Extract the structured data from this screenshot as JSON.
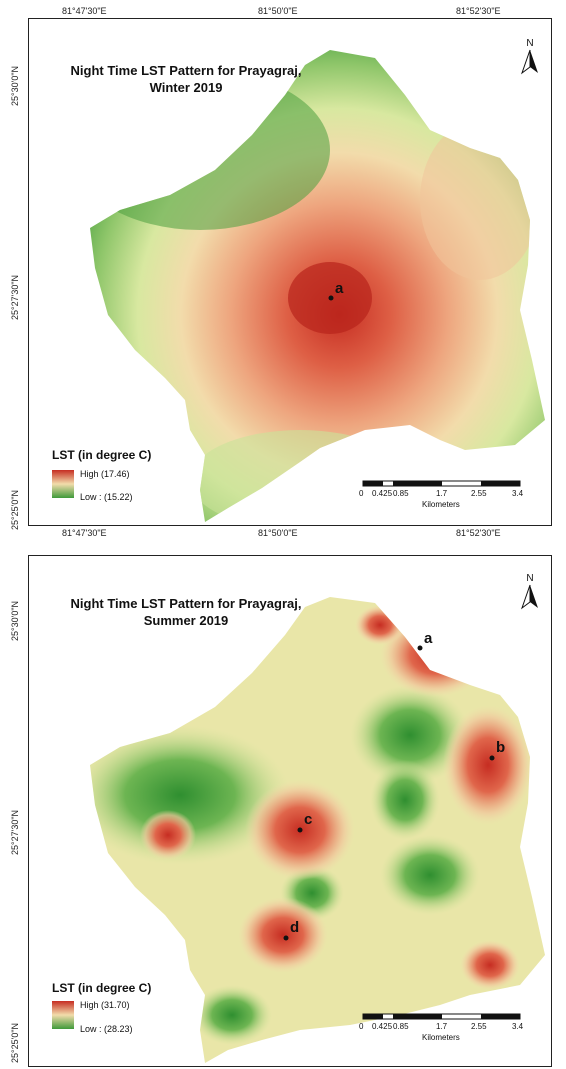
{
  "winter": {
    "title_line1": "Night Time LST Pattern for Prayagraj,",
    "title_line2": "Winter 2019",
    "legend_title": "LST (in degree C)",
    "legend_high": "High (17.46)",
    "legend_low": "Low : (15.22)",
    "top_ticks": [
      "81°47'30\"E",
      "81°50'0\"E",
      "81°52'30\"E"
    ],
    "bottom_ticks": [
      "81°47'30\"E",
      "81°50'0\"E",
      "81°52'30\"E"
    ],
    "left_ticks": [
      "25°30'0\"N",
      "25°27'30\"N",
      "25°25'0\"N"
    ],
    "points": [
      {
        "label": "a"
      }
    ],
    "high_color": "#c0392b",
    "low_color": "#2e8b2e"
  },
  "summer": {
    "title_line1": "Night Time LST Pattern for Prayagraj,",
    "title_line2": "Summer 2019",
    "legend_title": "LST (in degree C)",
    "legend_high": "High (31.70)",
    "legend_low": "Low : (28.23)",
    "left_ticks": [
      "25°30'0\"N",
      "25°27'30\"N",
      "25°25'0\"N"
    ],
    "points": [
      {
        "label": "a"
      },
      {
        "label": "b"
      },
      {
        "label": "c"
      },
      {
        "label": "d"
      }
    ],
    "high_color": "#c0392b",
    "low_color": "#2e8b2e"
  },
  "north_label": "N",
  "scale": {
    "ticks": [
      "0",
      "0.425",
      "0.85",
      "1.7",
      "2.55",
      "3.4"
    ],
    "unit": "Kilometers"
  }
}
